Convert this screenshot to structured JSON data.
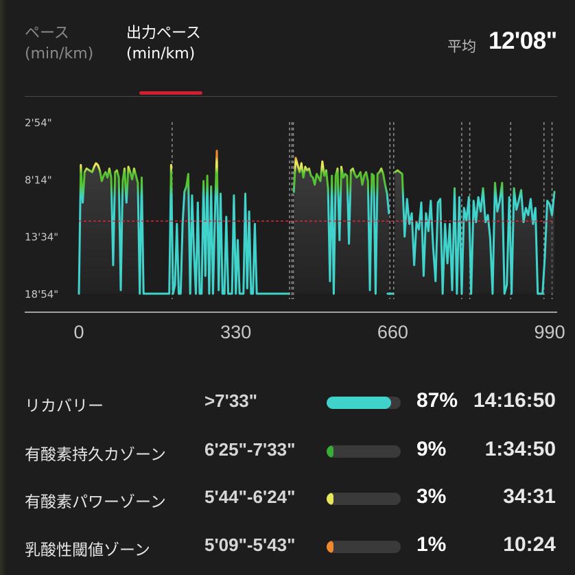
{
  "colors": {
    "background": "#1d1d1d",
    "accent": "#d11f32",
    "line_recovery": "#3fd3cb",
    "line_endurance": "#56c232",
    "line_power": "#e8e75a",
    "line_threshold": "#ee8a2b",
    "avg_line": "#e0253a"
  },
  "tabs": [
    {
      "label_line1": "ペース",
      "label_line2": "(min/km)",
      "active": false
    },
    {
      "label_line1": "出力ペース",
      "label_line2": "(min/km)",
      "active": true
    }
  ],
  "average": {
    "label": "平均",
    "value": "12'08\""
  },
  "chart_data": {
    "type": "line",
    "y_ticks": [
      "2'54\"",
      "8'14\"",
      "13'34\"",
      "18'54\""
    ],
    "y_tick_values_sec": [
      174,
      494,
      814,
      1134
    ],
    "x_ticks": [
      "0",
      "330",
      "660",
      "990"
    ],
    "x_tick_values": [
      0,
      330,
      660,
      990
    ],
    "x_range": [
      0,
      1000
    ],
    "y_range_sec": [
      174,
      1134
    ],
    "y_inverted": true,
    "average_sec": 728,
    "pause_markers": [
      196,
      443,
      448,
      451,
      654,
      662,
      805,
      822,
      908,
      978,
      995
    ],
    "gaps": [
      [
        442,
        452
      ]
    ],
    "isolated_points": [
      {
        "x": 655,
        "y_sec": 1134
      }
    ],
    "series": [
      {
        "segment": 1,
        "x": [
          0,
          4,
          8,
          12,
          16,
          22,
          28,
          32,
          36,
          40,
          44,
          48,
          52,
          56,
          60,
          64,
          68,
          72,
          76,
          80,
          84,
          88,
          92,
          96,
          100,
          104,
          108,
          112,
          116,
          120,
          124,
          128,
          132,
          136,
          140,
          144,
          148,
          152,
          156,
          160,
          164,
          170,
          180,
          190,
          194,
          198,
          202,
          206,
          210,
          214,
          218,
          222,
          226,
          230,
          234,
          238,
          242,
          246,
          250,
          254,
          258,
          262,
          266,
          270,
          274,
          278,
          282,
          286,
          290,
          294,
          298,
          302,
          306,
          310,
          314,
          318,
          322,
          326,
          330,
          334,
          338,
          342,
          346,
          350,
          354,
          358,
          362,
          366,
          370,
          374,
          378,
          382,
          386,
          390,
          394,
          398,
          402,
          406,
          410,
          414,
          418,
          422,
          426,
          430,
          434,
          438,
          441
        ],
        "y_sec": [
          1134,
          414,
          624,
          454,
          434,
          444,
          454,
          424,
          404,
          414,
          444,
          504,
          474,
          454,
          484,
          434,
          484,
          974,
          454,
          444,
          484,
          1114,
          504,
          434,
          624,
          424,
          454,
          494,
          434,
          474,
          514,
          1134,
          484,
          1134,
          1134,
          1134,
          1134,
          1134,
          1134,
          1134,
          1134,
          1134,
          1134,
          1134,
          414,
          1134,
          1084,
          744,
          1134,
          1134,
          744,
          564,
          534,
          464,
          1134,
          584,
          904,
          1134,
          624,
          1134,
          1134,
          504,
          1034,
          474,
          1134,
          534,
          1134,
          704,
          334,
          1114,
          574,
          1134,
          1134,
          704,
          1134,
          1134,
          1134,
          584,
          1134,
          834,
          1134,
          1134,
          1134,
          574,
          1104,
          674,
          1134,
          1134,
          744,
          1134,
          1134,
          1134,
          1134,
          1134,
          1134,
          1134,
          1134,
          1134,
          1134,
          1134,
          1134,
          1134,
          1134,
          1134,
          1134,
          1134,
          1134
        ]
      },
      {
        "segment": 2,
        "x": [
          452,
          456,
          460,
          464,
          468,
          472,
          476,
          480,
          484,
          488,
          492,
          496,
          500,
          504,
          508,
          512,
          516,
          520,
          524,
          528,
          532,
          536,
          540,
          544,
          548,
          552,
          556,
          560,
          564,
          568,
          572,
          576,
          580,
          584,
          588,
          592,
          596,
          600,
          604,
          608,
          612,
          616,
          620,
          624,
          628,
          632,
          636,
          640,
          644,
          648,
          652
        ],
        "y_sec": [
          564,
          374,
          414,
          454,
          404,
          484,
          424,
          444,
          434,
          474,
          484,
          524,
          464,
          484,
          504,
          394,
          474,
          444,
          544,
          1064,
          474,
          1134,
          474,
          434,
          834,
          424,
          484,
          464,
          474,
          854,
          444,
          434,
          464,
          484,
          474,
          454,
          524,
          474,
          454,
          504,
          1114,
          464,
          474,
          1134,
          464,
          454,
          434,
          464,
          524,
          574,
          684
        ]
      },
      {
        "segment": 3,
        "x": [
          665,
          670,
          675,
          680,
          685,
          690,
          695,
          700,
          705,
          710,
          715,
          720,
          725,
          730,
          735,
          740,
          745,
          750,
          755,
          760,
          765,
          770,
          775,
          780,
          785,
          790,
          795,
          800,
          805,
          810,
          815,
          820,
          825,
          830,
          835,
          840,
          845,
          850,
          855,
          860,
          865,
          870,
          875,
          880,
          885,
          890,
          895,
          900,
          905,
          910,
          915,
          920,
          925,
          930,
          935,
          940,
          945,
          950,
          955,
          960,
          965,
          970,
          975,
          980,
          985,
          990,
          995,
          1000
        ],
        "y_sec": [
          454,
          444,
          454,
          464,
          814,
          604,
          744,
          684,
          974,
          734,
          774,
          624,
          1034,
          684,
          784,
          614,
          874,
          1064,
          624,
          604,
          1134,
          744,
          964,
          744,
          1114,
          544,
          1134,
          594,
          1134,
          654,
          724,
          594,
          1134,
          614,
          734,
          594,
          674,
          544,
          734,
          694,
          824,
          1134,
          514,
          674,
          614,
          514,
          1134,
          1084,
          594,
          1134,
          544,
          664,
          614,
          554,
          734,
          654,
          694,
          604,
          744,
          654,
          1134,
          1134,
          1134,
          924,
          614,
          634,
          694,
          564
        ]
      }
    ]
  },
  "zones": [
    {
      "name": "リカバリー",
      "range": ">7'33\"",
      "percent": "87%",
      "fraction": 0.87,
      "time": "14:16:50",
      "color": "#3fd3cb"
    },
    {
      "name": "有酸素持久カゾーン",
      "range": "6'25\"-7'33\"",
      "percent": "9%",
      "fraction": 0.09,
      "time": "1:34:50",
      "color": "#3aaa38"
    },
    {
      "name": "有酸素パワーゾーン",
      "range": "5'44\"-6'24\"",
      "percent": "3%",
      "fraction": 0.03,
      "time": "34:31",
      "color": "#e8e75a"
    },
    {
      "name": "乳酸性閾値ゾーン",
      "range": "5'09\"-5'43\"",
      "percent": "1%",
      "fraction": 0.01,
      "time": "10:24",
      "color": "#ee8a2b"
    }
  ]
}
